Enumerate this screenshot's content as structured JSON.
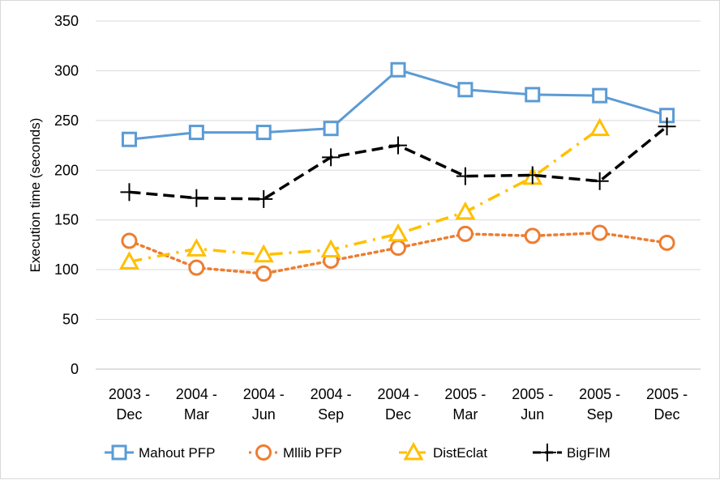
{
  "chart_data": {
    "type": "line",
    "categories": [
      [
        "2003 -",
        "Dec"
      ],
      [
        "2004 -",
        "Mar"
      ],
      [
        "2004 -",
        "Jun"
      ],
      [
        "2004 -",
        "Sep"
      ],
      [
        "2004 -",
        "Dec"
      ],
      [
        "2005 -",
        "Mar"
      ],
      [
        "2005 -",
        "Jun"
      ],
      [
        "2005 -",
        "Sep"
      ],
      [
        "2005 -",
        "Dec"
      ]
    ],
    "ylabel": "Execution time (seconds)",
    "xlabel": "",
    "ylim": [
      0,
      350
    ],
    "yticks": [
      0,
      50,
      100,
      150,
      200,
      250,
      300,
      350
    ],
    "grid": "horizontal",
    "legend": "bottom",
    "series": [
      {
        "name": "Mahout PFP",
        "color": "#5b9bd5",
        "marker": "square",
        "line": "solid",
        "values": [
          231,
          238,
          238,
          242,
          301,
          281,
          276,
          275,
          255
        ]
      },
      {
        "name": "Mllib PFP",
        "color": "#ed7d31",
        "marker": "circle",
        "line": "dotted",
        "values": [
          129,
          102,
          96,
          109,
          122,
          136,
          134,
          137,
          127
        ]
      },
      {
        "name": "DistEclat",
        "color": "#ffc000",
        "marker": "triangle",
        "line": "dashdot",
        "values": [
          108,
          121,
          115,
          120,
          136,
          158,
          193,
          242,
          null
        ]
      },
      {
        "name": "BigFIM",
        "color": "#000000",
        "marker": "plus",
        "line": "dashed",
        "values": [
          178,
          172,
          171,
          213,
          225,
          194,
          195,
          189,
          244
        ]
      }
    ]
  }
}
